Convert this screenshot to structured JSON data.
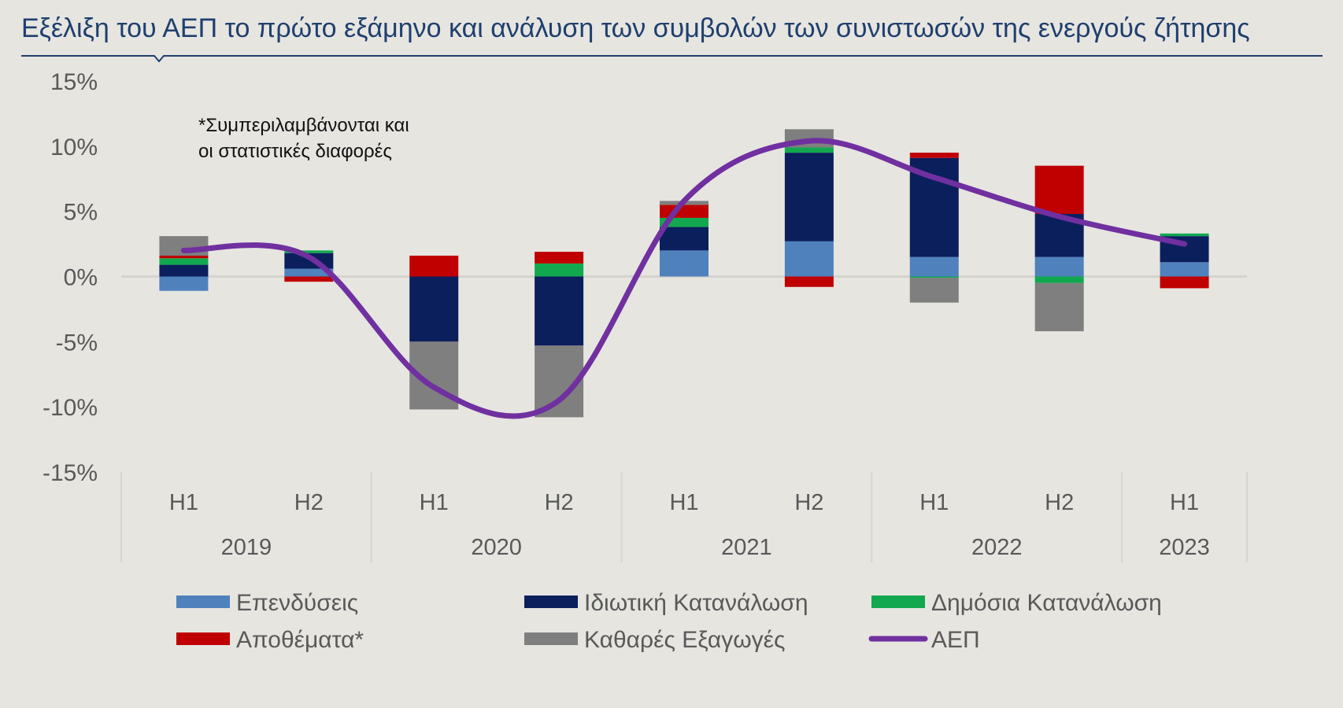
{
  "title": "Εξέλιξη του ΑΕΠ το πρώτο εξάμηνο και ανάλυση των συμβολών των συνιστωσών της ενεργούς ζήτησης",
  "annotation": [
    "*Συμπεριλαμβάνονται και",
    "οι στατιστικές διαφορές"
  ],
  "colors": {
    "background": "#e6e5e0",
    "title": "#1f3f6e",
    "axis_text": "#595959",
    "Επενδύσεις": "#4f81bd",
    "Ιδιωτική Κατανάλωση": "#0b1f5c",
    "Δημόσια Κατανάλωση": "#12a84f",
    "Αποθέματα*": "#c00000",
    "Καθαρές Εξαγωγές": "#7f7f7f",
    "ΑΕΠ": "#7030a0"
  },
  "chart_data": {
    "type": "bar",
    "stacked": true,
    "title": "Εξέλιξη του ΑΕΠ το πρώτο εξάμηνο και ανάλυση των συμβολών των συνιστωσών της ενεργούς ζήτησης",
    "xlabel": "",
    "ylabel": "",
    "ylim": [
      -15,
      15
    ],
    "yticks": [
      "15%",
      "10%",
      "5%",
      "0%",
      "-5%",
      "-10%",
      "-15%"
    ],
    "ytick_values": [
      15,
      10,
      5,
      0,
      -5,
      -10,
      -15
    ],
    "categories": [
      "H1",
      "H2",
      "H1",
      "H2",
      "H1",
      "H2",
      "H1",
      "H2",
      "H1"
    ],
    "groups": [
      {
        "label": "2019",
        "span": 2
      },
      {
        "label": "2020",
        "span": 2
      },
      {
        "label": "2021",
        "span": 2
      },
      {
        "label": "2022",
        "span": 2
      },
      {
        "label": "2023",
        "span": 1
      }
    ],
    "legend_position": "bottom",
    "series": [
      {
        "name": "Επενδύσεις",
        "type": "bar",
        "values": [
          -1.1,
          0.6,
          0.0,
          0.0,
          2.0,
          2.7,
          1.5,
          1.5,
          1.1
        ]
      },
      {
        "name": "Ιδιωτική Κατανάλωση",
        "type": "bar",
        "values": [
          0.9,
          1.2,
          -5.0,
          -5.3,
          1.8,
          6.8,
          7.6,
          3.3,
          2.0
        ]
      },
      {
        "name": "Δημόσια Κατανάλωση",
        "type": "bar",
        "values": [
          0.5,
          0.2,
          0.0,
          1.0,
          0.7,
          0.4,
          -0.1,
          -0.5,
          0.2
        ]
      },
      {
        "name": "Αποθέματα*",
        "type": "bar",
        "values": [
          0.2,
          -0.4,
          1.6,
          0.9,
          1.0,
          -0.8,
          0.4,
          3.7,
          -0.9
        ]
      },
      {
        "name": "Καθαρές Εξαγωγές",
        "type": "bar",
        "values": [
          1.5,
          0.0,
          -5.2,
          -5.5,
          0.3,
          1.4,
          -1.9,
          -3.7,
          0.0
        ]
      },
      {
        "name": "ΑΕΠ",
        "type": "line",
        "values": [
          2.0,
          1.5,
          -8.5,
          -9.5,
          5.8,
          10.4,
          7.6,
          4.6,
          2.5
        ]
      }
    ]
  }
}
